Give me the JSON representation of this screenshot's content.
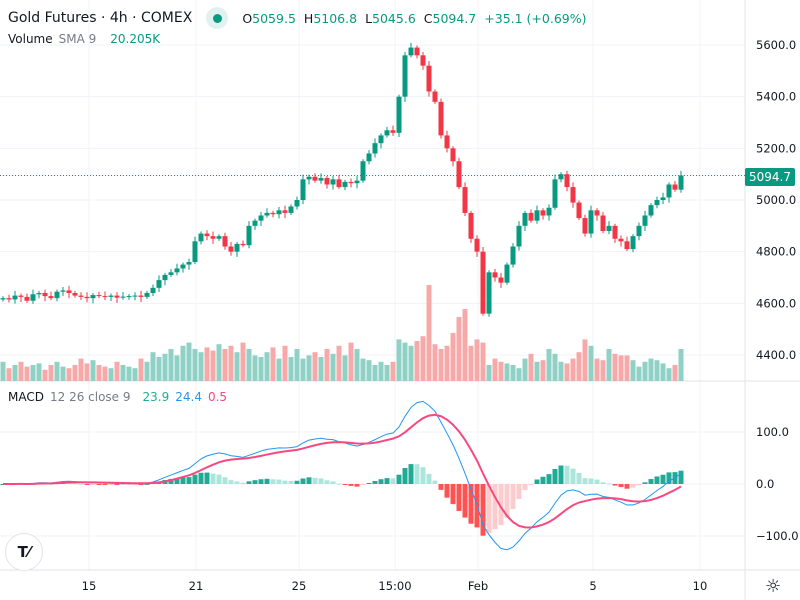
{
  "header": {
    "title": "Gold Futures · 4h · COMEX",
    "o_label": "O",
    "o": "5059.5",
    "h_label": "H",
    "h": "5106.8",
    "l_label": "L",
    "l": "5045.6",
    "c_label": "C",
    "c": "5094.7",
    "change": "+35.1 (+0.69%)"
  },
  "volume_legend": {
    "name": "Volume",
    "params": "SMA 9",
    "value": "20.205K"
  },
  "macd_legend": {
    "name": "MACD",
    "params": "12 26 close 9",
    "hist": "23.9",
    "macd": "24.4",
    "signal": "0.5"
  },
  "last_price": "5094.7",
  "price_axis": [
    "5600.0",
    "5400.0",
    "5200.0",
    "5000.0",
    "4800.0",
    "4600.0",
    "4400.0"
  ],
  "price_axis_values": [
    5600,
    5400,
    5200,
    5000,
    4800,
    4600,
    4400
  ],
  "macd_axis": [
    "100.0",
    "0.0",
    "−100.0"
  ],
  "macd_axis_values": [
    100,
    0,
    -100
  ],
  "time_axis": [
    "15",
    "21",
    "25",
    "15:00",
    "Feb",
    "5",
    "10"
  ],
  "logo": "TV",
  "colors": {
    "up": "#089981",
    "down": "#f23645",
    "up_vol": "#8fd1c4",
    "down_vol": "#f7a9a9",
    "macd": "#2196f3",
    "signal": "#f7497f"
  },
  "chart_data": {
    "type": "candlestick",
    "closes": [
      4620,
      4615,
      4630,
      4625,
      4610,
      4635,
      4640,
      4628,
      4620,
      4645,
      4650,
      4640,
      4630,
      4625,
      4620,
      4632,
      4628,
      4625,
      4630,
      4622,
      4626,
      4628,
      4630,
      4625,
      4640,
      4660,
      4690,
      4710,
      4720,
      4735,
      4750,
      4760,
      4840,
      4870,
      4860,
      4850,
      4860,
      4820,
      4800,
      4830,
      4825,
      4900,
      4920,
      4940,
      4950,
      4945,
      4960,
      4950,
      4975,
      5000,
      5080,
      5090,
      5075,
      5085,
      5060,
      5080,
      5050,
      5070,
      5065,
      5075,
      5150,
      5180,
      5220,
      5250,
      5270,
      5260,
      5400,
      5560,
      5590,
      5560,
      5520,
      5420,
      5380,
      5250,
      5200,
      5150,
      5050,
      4950,
      4850,
      4800,
      4560,
      4720,
      4700,
      4680,
      4750,
      4820,
      4900,
      4950,
      4920,
      4960,
      4940,
      4970,
      5080,
      5100,
      5050,
      4990,
      4930,
      4870,
      4960,
      4940,
      4880,
      4900,
      4850,
      4840,
      4810,
      4860,
      4900,
      4940,
      4980,
      5000,
      5010,
      5060,
      5040,
      5094.7
    ],
    "volumes_k": [
      12,
      8,
      10,
      12,
      9,
      10,
      11,
      7,
      10,
      12,
      9,
      8,
      10,
      14,
      11,
      13,
      10,
      9,
      8,
      12,
      10,
      9,
      8,
      14,
      12,
      18,
      15,
      17,
      20,
      16,
      22,
      24,
      20,
      18,
      21,
      19,
      23,
      20,
      22,
      18,
      24,
      20,
      16,
      15,
      18,
      21,
      14,
      22,
      15,
      20,
      14,
      16,
      18,
      15,
      20,
      17,
      22,
      16,
      24,
      20,
      14,
      13,
      10,
      12,
      10,
      12,
      26,
      24,
      22,
      25,
      28,
      60,
      23,
      20,
      22,
      30,
      40,
      45,
      22,
      26,
      24,
      10,
      14,
      12,
      11,
      10,
      8,
      14,
      17,
      12,
      13,
      20,
      17,
      12,
      11,
      14,
      18,
      26,
      22,
      14,
      13,
      20,
      17,
      16,
      16,
      13,
      9,
      12,
      14,
      13,
      11,
      8,
      10,
      20
    ],
    "price_range": [
      4390,
      5640
    ],
    "macd_params": [
      12,
      26,
      9
    ]
  }
}
